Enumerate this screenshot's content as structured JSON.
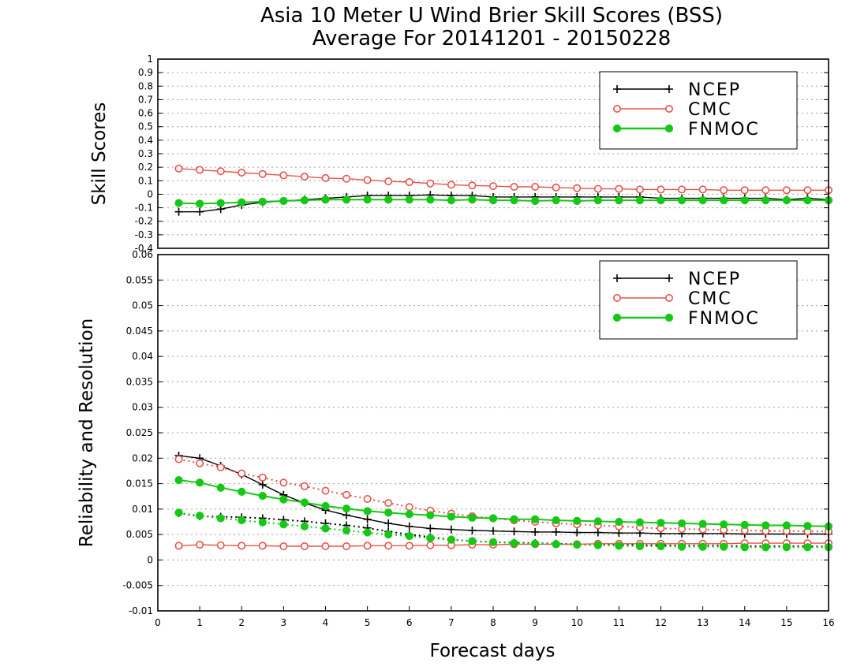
{
  "colors": {
    "NCEP": "#000000",
    "CMC": "#e8524a",
    "FNMOC": "#16c816",
    "grid": "#a0a0a0",
    "background": "#ffffff"
  },
  "chart_data": [
    {
      "type": "line",
      "title": "Asia 10 Meter U Wind Brier Skill Scores (BSS)",
      "subtitle": "Average For 20141201 - 20150228",
      "xlabel": "",
      "ylabel": "Skill Scores",
      "xlim": [
        0,
        16
      ],
      "ylim": [
        -0.4,
        1
      ],
      "yticks": [
        -0.4,
        -0.3,
        -0.2,
        -0.1,
        0,
        0.1,
        0.2,
        0.3,
        0.4,
        0.5,
        0.6,
        0.7,
        0.8,
        0.9,
        1
      ],
      "ytick_labels": [
        "-0.4",
        "-0.3",
        "-0.2",
        "-0.1",
        "0",
        "0.1",
        "0.2",
        "0.3",
        "0.4",
        "0.5",
        "0.6",
        "0.7",
        "0.8",
        "0.9",
        "1"
      ],
      "grid": true,
      "legend": "top-right",
      "x": [
        0.5,
        1,
        1.5,
        2,
        2.5,
        3,
        3.5,
        4,
        4.5,
        5,
        5.5,
        6,
        6.5,
        7,
        7.5,
        8,
        8.5,
        9,
        9.5,
        10,
        10.5,
        11,
        11.5,
        12,
        12.5,
        13,
        13.5,
        14,
        14.5,
        15,
        15.5,
        16
      ],
      "series": [
        {
          "name": "NCEP",
          "marker": "plus",
          "style": "solid",
          "values": [
            -0.13,
            -0.13,
            -0.11,
            -0.08,
            -0.06,
            -0.05,
            -0.04,
            -0.03,
            -0.02,
            -0.01,
            -0.01,
            -0.01,
            -0.005,
            -0.01,
            -0.01,
            -0.02,
            -0.02,
            -0.02,
            -0.02,
            -0.02,
            -0.02,
            -0.02,
            -0.02,
            -0.03,
            -0.03,
            -0.03,
            -0.03,
            -0.03,
            -0.03,
            -0.04,
            -0.03,
            -0.04
          ]
        },
        {
          "name": "CMC",
          "marker": "open-circle",
          "style": "solid",
          "values": [
            0.19,
            0.18,
            0.17,
            0.16,
            0.15,
            0.14,
            0.13,
            0.12,
            0.115,
            0.105,
            0.095,
            0.09,
            0.08,
            0.07,
            0.065,
            0.06,
            0.055,
            0.055,
            0.05,
            0.045,
            0.04,
            0.04,
            0.035,
            0.035,
            0.035,
            0.035,
            0.03,
            0.03,
            0.03,
            0.03,
            0.03,
            0.03
          ]
        },
        {
          "name": "FNMOC",
          "marker": "filled-circle",
          "style": "solid",
          "values": [
            -0.065,
            -0.07,
            -0.065,
            -0.06,
            -0.055,
            -0.05,
            -0.045,
            -0.04,
            -0.04,
            -0.04,
            -0.04,
            -0.04,
            -0.04,
            -0.045,
            -0.04,
            -0.045,
            -0.045,
            -0.05,
            -0.045,
            -0.05,
            -0.045,
            -0.045,
            -0.045,
            -0.045,
            -0.045,
            -0.045,
            -0.045,
            -0.045,
            -0.045,
            -0.045,
            -0.045,
            -0.045
          ]
        }
      ]
    },
    {
      "type": "line",
      "title": "",
      "xlabel": "Forecast days",
      "ylabel": "Reliability and Resolution",
      "xlim": [
        0,
        16
      ],
      "ylim": [
        -0.01,
        0.06
      ],
      "xticks": [
        0,
        1,
        2,
        3,
        4,
        5,
        6,
        7,
        8,
        9,
        10,
        11,
        12,
        13,
        14,
        15,
        16
      ],
      "xtick_labels": [
        "0",
        "1",
        "2",
        "3",
        "4",
        "5",
        "6",
        "7",
        "8",
        "9",
        "10",
        "11",
        "12",
        "13",
        "14",
        "15",
        "16"
      ],
      "yticks": [
        -0.01,
        -0.005,
        0,
        0.005,
        0.01,
        0.015,
        0.02,
        0.025,
        0.03,
        0.035,
        0.04,
        0.045,
        0.05,
        0.055,
        0.06
      ],
      "ytick_labels": [
        "-0.01",
        "-0.005",
        "0",
        "0.005",
        "0.01",
        "0.015",
        "0.02",
        "0.025",
        "0.03",
        "0.035",
        "0.04",
        "0.045",
        "0.05",
        "0.055",
        "0.06"
      ],
      "grid": true,
      "legend": "top-right",
      "x": [
        0.5,
        1,
        1.5,
        2,
        2.5,
        3,
        3.5,
        4,
        4.5,
        5,
        5.5,
        6,
        6.5,
        7,
        7.5,
        8,
        8.5,
        9,
        9.5,
        10,
        10.5,
        11,
        11.5,
        12,
        12.5,
        13,
        13.5,
        14,
        14.5,
        15,
        15.5,
        16
      ],
      "series": [
        {
          "name": "NCEP",
          "marker": "plus",
          "style": "solid",
          "values": [
            0.0205,
            0.02,
            0.0185,
            0.0168,
            0.0148,
            0.0128,
            0.0112,
            0.0098,
            0.0088,
            0.008,
            0.0072,
            0.0066,
            0.0062,
            0.006,
            0.0058,
            0.0057,
            0.0056,
            0.0055,
            0.0055,
            0.0054,
            0.0054,
            0.0053,
            0.0053,
            0.0052,
            0.0052,
            0.0052,
            0.0052,
            0.0051,
            0.0051,
            0.0051,
            0.0051,
            0.0051
          ]
        },
        {
          "name": "",
          "marker": "plus",
          "style": "dotted",
          "values": [
            0.0092,
            0.0086,
            0.0085,
            0.0084,
            0.0082,
            0.0079,
            0.0076,
            0.0072,
            0.0068,
            0.0063,
            0.0056,
            0.005,
            0.0045,
            0.004,
            0.0037,
            0.0035,
            0.0034,
            0.0033,
            0.0032,
            0.0031,
            0.003,
            0.003,
            0.0029,
            0.0029,
            0.0028,
            0.0028,
            0.0028,
            0.0027,
            0.0027,
            0.0027,
            0.0027,
            0.0026
          ]
        },
        {
          "name": "CMC",
          "marker": "open-circle",
          "style": "dotted",
          "values": [
            0.0198,
            0.019,
            0.0182,
            0.017,
            0.0162,
            0.0152,
            0.0145,
            0.0136,
            0.0128,
            0.012,
            0.0112,
            0.0104,
            0.0097,
            0.0091,
            0.0086,
            0.0082,
            0.0078,
            0.0075,
            0.0072,
            0.007,
            0.0068,
            0.0066,
            0.0064,
            0.0062,
            0.0061,
            0.006,
            0.0059,
            0.0058,
            0.0057,
            0.0057,
            0.0056,
            0.0056
          ]
        },
        {
          "name": "",
          "marker": "open-circle",
          "style": "solid",
          "values": [
            0.0028,
            0.003,
            0.0029,
            0.0028,
            0.0028,
            0.0027,
            0.0027,
            0.0027,
            0.0027,
            0.0028,
            0.0028,
            0.0028,
            0.0029,
            0.0029,
            0.003,
            0.003,
            0.0031,
            0.0031,
            0.0031,
            0.0031,
            0.0032,
            0.0032,
            0.0032,
            0.0032,
            0.0032,
            0.0032,
            0.0032,
            0.0033,
            0.0033,
            0.0033,
            0.0033,
            0.0033
          ]
        },
        {
          "name": "FNMOC",
          "marker": "filled-circle",
          "style": "solid",
          "values": [
            0.0157,
            0.0152,
            0.0142,
            0.0134,
            0.0126,
            0.0119,
            0.0113,
            0.0106,
            0.0101,
            0.0096,
            0.0093,
            0.009,
            0.0088,
            0.0085,
            0.0083,
            0.0082,
            0.008,
            0.008,
            0.0078,
            0.0077,
            0.0076,
            0.0075,
            0.0074,
            0.0073,
            0.0072,
            0.0071,
            0.007,
            0.0069,
            0.0068,
            0.0068,
            0.0067,
            0.0066
          ]
        },
        {
          "name": "",
          "marker": "filled-circle",
          "style": "dotted",
          "values": [
            0.0093,
            0.0087,
            0.0082,
            0.0078,
            0.0074,
            0.007,
            0.0066,
            0.0062,
            0.0058,
            0.0054,
            0.005,
            0.0047,
            0.0043,
            0.004,
            0.0037,
            0.0035,
            0.0033,
            0.0032,
            0.0031,
            0.003,
            0.0029,
            0.0028,
            0.0027,
            0.0027,
            0.0026,
            0.0026,
            0.0026,
            0.0025,
            0.0025,
            0.0025,
            0.0025,
            0.0025
          ]
        }
      ]
    }
  ]
}
